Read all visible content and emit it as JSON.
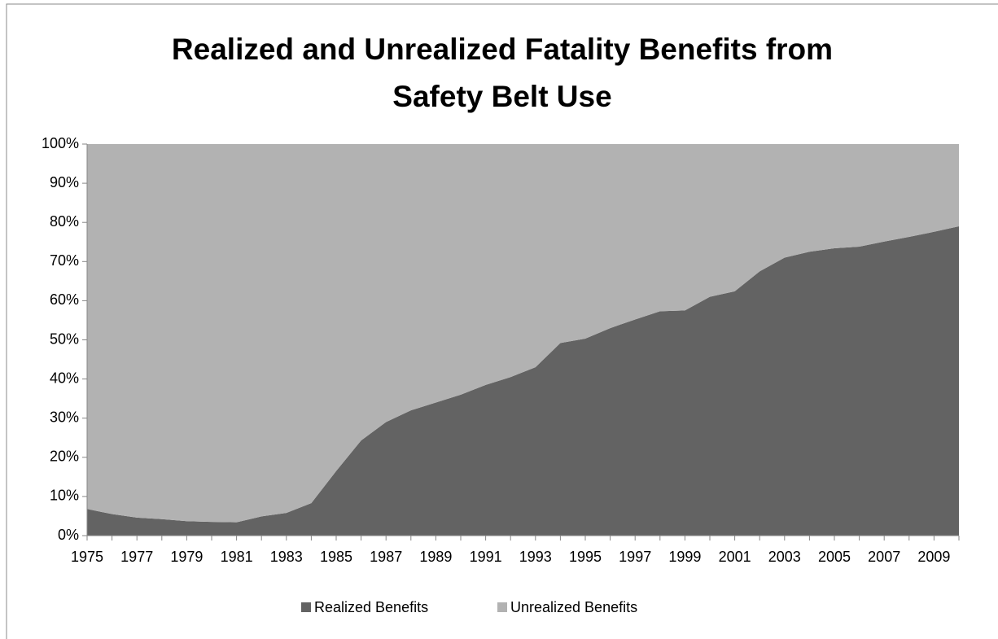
{
  "chart_data": {
    "type": "stacked_area",
    "title": [
      "Realized and Unrealized Fatality Benefits from",
      "Safety Belt Use"
    ],
    "categories": [
      "1975",
      null,
      "1977",
      null,
      "1979",
      null,
      "1981",
      null,
      "1983",
      null,
      "1985",
      null,
      "1987",
      null,
      "1989",
      null,
      "1991",
      null,
      "1993",
      null,
      "1995",
      null,
      "1997",
      null,
      "1999",
      null,
      "2001",
      null,
      "2003",
      null,
      "2005",
      null,
      "2007",
      null,
      "2009",
      null
    ],
    "series": [
      {
        "name": "Realized Benefits",
        "color": "#636363",
        "values": [
          6.8,
          5.5,
          4.6,
          4.2,
          3.7,
          3.5,
          3.4,
          4.9,
          5.8,
          8.3,
          16.5,
          24.3,
          29,
          32,
          34,
          36,
          38.5,
          40.5,
          43,
          49.2,
          50.3,
          53,
          55.2,
          57.3,
          57.5,
          61,
          62.4,
          67.5,
          71,
          72.5,
          73.4,
          73.8,
          75.1,
          76.3,
          77.6,
          79
        ]
      },
      {
        "name": "Unrealized Benefits",
        "color": "#b2b2b2",
        "values": [
          93.2,
          94.5,
          95.4,
          95.8,
          96.3,
          96.5,
          96.6,
          95.1,
          94.2,
          91.7,
          83.5,
          75.7,
          71,
          68,
          66,
          64,
          61.5,
          59.5,
          57,
          50.8,
          49.7,
          47,
          44.8,
          42.7,
          42.5,
          39,
          37.6,
          32.5,
          29,
          27.5,
          26.6,
          26.2,
          24.9,
          23.7,
          22.4,
          21
        ]
      }
    ],
    "ylim": [
      0,
      100
    ],
    "yticks": [
      {
        "value": 0,
        "label": "0%"
      },
      {
        "value": 10,
        "label": "10%"
      },
      {
        "value": 20,
        "label": "20%"
      },
      {
        "value": 30,
        "label": "30%"
      },
      {
        "value": 40,
        "label": "40%"
      },
      {
        "value": 50,
        "label": "50%"
      },
      {
        "value": 60,
        "label": "60%"
      },
      {
        "value": 70,
        "label": "70%"
      },
      {
        "value": 80,
        "label": "80%"
      },
      {
        "value": 90,
        "label": "90%"
      },
      {
        "value": 100,
        "label": "100%"
      }
    ],
    "grid": false,
    "legend": "bottom"
  }
}
